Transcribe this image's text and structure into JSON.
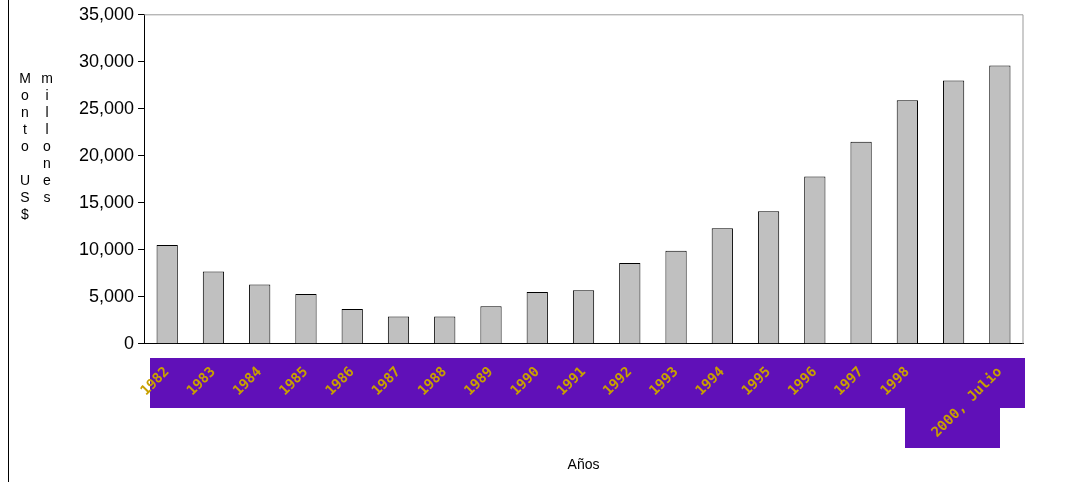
{
  "chart_data": {
    "type": "bar",
    "xlabel": "Años",
    "ylabel": "Monto US$ millones",
    "categories": [
      "1982",
      "1983",
      "1984",
      "1985",
      "1986",
      "1987",
      "1988",
      "1989",
      "1990",
      "1991",
      "1992",
      "1993",
      "1994",
      "1995",
      "1996",
      "1997",
      "1998",
      null,
      "2000, Julio"
    ],
    "values": [
      10500,
      7700,
      6300,
      5300,
      3700,
      2900,
      2900,
      4000,
      5500,
      5700,
      8600,
      9900,
      12300,
      14100,
      17800,
      21500,
      25900,
      28000,
      29600
    ],
    "color": "#c0c0c0",
    "ylim": [
      0,
      35000
    ],
    "yticks": [
      0,
      {
        "value": 5000,
        "label": "5,000"
      },
      {
        "value": 10000,
        "label": "10,000"
      },
      {
        "value": 15000,
        "label": "15,000"
      },
      {
        "value": 20000,
        "label": "20,000"
      },
      {
        "value": 25000,
        "label": "25,000"
      },
      {
        "value": 30000,
        "label": "30,000"
      },
      {
        "value": 35000,
        "label": "35,000"
      }
    ],
    "grid": false,
    "legend": false
  }
}
